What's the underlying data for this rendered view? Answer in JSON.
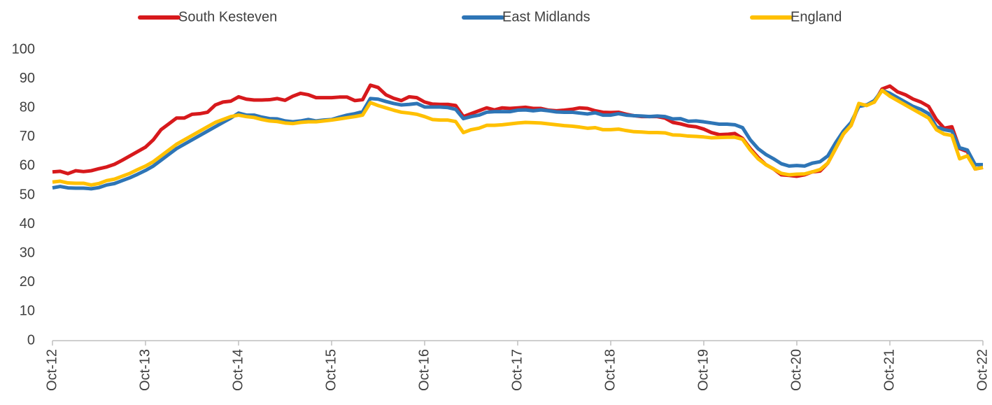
{
  "chart_data": {
    "type": "line",
    "categories": [
      "Oct-12",
      null,
      null,
      null,
      null,
      null,
      null,
      null,
      null,
      null,
      null,
      null,
      "Oct-13",
      null,
      null,
      null,
      null,
      null,
      null,
      null,
      null,
      null,
      null,
      null,
      "Oct-14",
      null,
      null,
      null,
      null,
      null,
      null,
      null,
      null,
      null,
      null,
      null,
      "Oct-15",
      null,
      null,
      null,
      null,
      null,
      null,
      null,
      null,
      null,
      null,
      null,
      "Oct-16",
      null,
      null,
      null,
      null,
      null,
      null,
      null,
      null,
      null,
      null,
      null,
      "Oct-17",
      null,
      null,
      null,
      null,
      null,
      null,
      null,
      null,
      null,
      null,
      null,
      "Oct-18",
      null,
      null,
      null,
      null,
      null,
      null,
      null,
      null,
      null,
      null,
      null,
      "Oct-19",
      null,
      null,
      null,
      null,
      null,
      null,
      null,
      null,
      null,
      null,
      null,
      "Oct-20",
      null,
      null,
      null,
      null,
      null,
      null,
      null,
      null,
      null,
      null,
      null,
      "Oct-21",
      null,
      null,
      null,
      null,
      null,
      null,
      null,
      null,
      null,
      null,
      null,
      "Oct-22"
    ],
    "series": [
      {
        "name": "South Kesteven",
        "color": "#d7191c",
        "values": [
          58,
          58.2,
          57.4,
          58.4,
          58.1,
          58.4,
          59.1,
          59.7,
          60.6,
          62,
          63.5,
          65,
          66.5,
          69,
          72.5,
          74.5,
          76.5,
          76.5,
          77.8,
          78,
          78.5,
          81,
          82,
          82.3,
          83.8,
          83,
          82.7,
          82.7,
          82.8,
          83.2,
          82.6,
          84,
          85,
          84.5,
          83.5,
          83.5,
          83.5,
          83.7,
          83.7,
          82.5,
          82.8,
          87.8,
          87,
          84.5,
          83.3,
          82.5,
          83.8,
          83.5,
          82,
          81.3,
          81.2,
          81.2,
          80.8,
          77,
          78,
          79,
          80,
          79.3,
          80,
          79.8,
          80,
          80.2,
          79.8,
          79.8,
          79.2,
          79,
          79.2,
          79.5,
          80,
          79.8,
          79,
          78.5,
          78.4,
          78.5,
          77.8,
          77.3,
          77,
          77,
          77,
          76.5,
          75,
          74.5,
          73.8,
          73.5,
          72.7,
          71.5,
          70.8,
          70.9,
          71.2,
          69.5,
          66,
          63,
          60.5,
          59,
          57,
          56.8,
          56.5,
          57,
          58,
          58.3,
          61,
          66,
          71,
          74,
          81,
          81,
          82,
          86.5,
          87.5,
          85.5,
          84.5,
          83,
          82,
          80.5,
          76,
          73,
          73.5,
          66,
          65,
          59,
          59.5
        ]
      },
      {
        "name": "East Midlands",
        "color": "#2e75b6",
        "values": [
          52.5,
          53,
          52.5,
          52.4,
          52.4,
          52.2,
          52.6,
          53.5,
          54,
          55,
          56,
          57.2,
          58.5,
          60,
          62,
          64,
          66,
          67.5,
          69,
          70.5,
          72,
          73.5,
          75,
          76.5,
          78.2,
          77.5,
          77.5,
          76.8,
          76.3,
          76.2,
          75.5,
          75.2,
          75.5,
          76,
          75.5,
          75.8,
          76,
          76.8,
          77.5,
          78,
          78.7,
          83.2,
          83,
          82.2,
          81.5,
          81,
          81.2,
          81.5,
          80.3,
          80.3,
          80.3,
          80.1,
          79.5,
          76.3,
          77,
          77.5,
          78.5,
          78.7,
          78.7,
          78.7,
          79.2,
          79.3,
          79,
          79.3,
          79,
          78.6,
          78.5,
          78.5,
          78.2,
          77.9,
          78.3,
          77.5,
          77.5,
          78,
          77.5,
          77.3,
          77.2,
          77,
          77.2,
          77,
          76.2,
          76.3,
          75.4,
          75.5,
          75.2,
          74.8,
          74.4,
          74.4,
          74.2,
          73.2,
          69,
          66,
          64,
          62.5,
          60.8,
          60,
          60.2,
          60,
          61,
          61.5,
          63.5,
          68,
          72,
          75,
          80.5,
          81,
          82.5,
          86,
          85,
          83.5,
          82,
          80.5,
          79.5,
          78,
          73.5,
          72.5,
          72,
          66.3,
          65.5,
          60.5,
          60.5
        ]
      },
      {
        "name": "England",
        "color": "#ffc000",
        "values": [
          54.5,
          54.8,
          54.2,
          54.1,
          54.1,
          53.5,
          54,
          55,
          55.5,
          56.5,
          57.5,
          58.8,
          60,
          61.5,
          63.5,
          65.5,
          67.5,
          69,
          70.5,
          72,
          73.5,
          75,
          76,
          77,
          77.5,
          77,
          76.7,
          76,
          75.5,
          75.3,
          74.8,
          74.6,
          75,
          75.2,
          75.2,
          75.5,
          75.8,
          76.2,
          76.6,
          77,
          77.5,
          81.8,
          80.8,
          80,
          79.2,
          78.5,
          78.2,
          77.8,
          77,
          76,
          75.8,
          75.8,
          75.3,
          71.5,
          72.5,
          73,
          74,
          74,
          74.2,
          74.5,
          74.8,
          75,
          74.9,
          74.8,
          74.5,
          74.2,
          73.9,
          73.7,
          73.4,
          73,
          73.2,
          72.5,
          72.5,
          72.7,
          72.2,
          71.8,
          71.7,
          71.5,
          71.5,
          71.4,
          70.7,
          70.6,
          70.3,
          70.2,
          70,
          69.7,
          69.8,
          69.9,
          69.9,
          69.2,
          65.5,
          62.5,
          60.5,
          59,
          57.5,
          57,
          57.2,
          57.3,
          58,
          58.8,
          61,
          66,
          71,
          74,
          81.5,
          80.8,
          82,
          86,
          84,
          82.5,
          81,
          79.5,
          78,
          76.5,
          72.5,
          71,
          70.5,
          62.5,
          63.5,
          59,
          59.5
        ]
      }
    ],
    "ylim": [
      0,
      100
    ],
    "yticks": [
      0,
      10,
      20,
      30,
      40,
      50,
      60,
      70,
      80,
      90,
      100
    ],
    "grid": false,
    "legend": "top"
  }
}
